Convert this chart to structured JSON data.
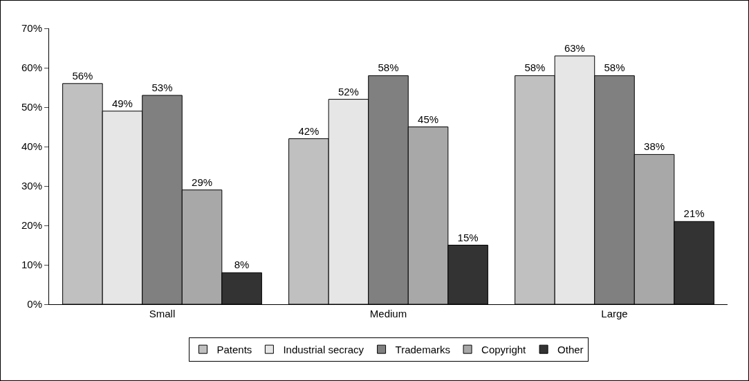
{
  "chart_data": {
    "type": "bar",
    "categories": [
      "Small",
      "Medium",
      "Large"
    ],
    "series": [
      {
        "name": "Patents",
        "color": "#c0c0c0",
        "values": [
          56,
          42,
          58
        ],
        "value_labels": [
          "56%",
          "42%",
          "58%"
        ]
      },
      {
        "name": "Industrial secracy",
        "color": "#e6e6e6",
        "values": [
          49,
          52,
          63
        ],
        "value_labels": [
          "49%",
          "52%",
          "63%"
        ]
      },
      {
        "name": "Trademarks",
        "color": "#808080",
        "values": [
          53,
          58,
          58
        ],
        "value_labels": [
          "53%",
          "58%",
          "58%"
        ]
      },
      {
        "name": "Copyright",
        "color": "#a8a8a8",
        "values": [
          29,
          45,
          38
        ],
        "value_labels": [
          "29%",
          "45%",
          "38%"
        ]
      },
      {
        "name": "Other",
        "color": "#333333",
        "values": [
          8,
          15,
          21
        ],
        "value_labels": [
          "8%",
          "15%",
          "21%"
        ]
      }
    ],
    "ylim": [
      0,
      70
    ],
    "yticks": [
      {
        "value": 0,
        "label": "0%"
      },
      {
        "value": 10,
        "label": "10%"
      },
      {
        "value": 20,
        "label": "20%"
      },
      {
        "value": 30,
        "label": "30%"
      },
      {
        "value": 40,
        "label": "40%"
      },
      {
        "value": 50,
        "label": "50%"
      },
      {
        "value": 60,
        "label": "60%"
      },
      {
        "value": 70,
        "label": "70%"
      }
    ],
    "legend": "bottom",
    "grid": false
  }
}
